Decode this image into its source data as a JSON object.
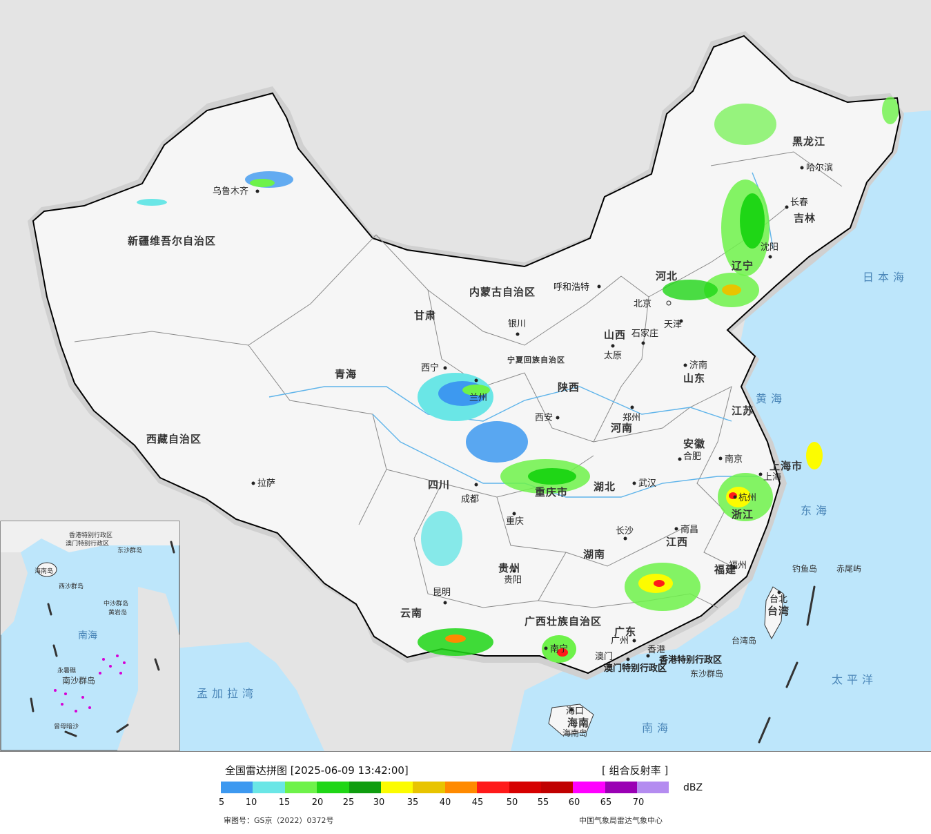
{
  "map": {
    "provinces": [
      "新疆维吾尔自治区",
      "西藏自治区",
      "青海",
      "甘肃",
      "内蒙古自治区",
      "黑龙江",
      "吉林",
      "辽宁",
      "河北",
      "山西",
      "陕西",
      "山东",
      "河南",
      "江苏",
      "安徽",
      "湖北",
      "四川",
      "重庆市",
      "贵州",
      "云南",
      "湖南",
      "江西",
      "浙江",
      "福建",
      "广东",
      "广西壮族自治区",
      "海南",
      "台湾",
      "宁夏回族自治区",
      "上海市",
      "北京",
      "天津",
      "香港特别行政区",
      "澳门特别行政区"
    ],
    "cities": [
      "乌鲁木齐",
      "拉萨",
      "西宁",
      "兰州",
      "银川",
      "呼和浩特",
      "北京",
      "天津",
      "石家庄",
      "太原",
      "济南",
      "郑州",
      "西安",
      "成都",
      "重庆",
      "武汉",
      "长沙",
      "南昌",
      "合肥",
      "南京",
      "上海",
      "杭州",
      "福州",
      "贵阳",
      "昆明",
      "南宁",
      "广州",
      "香港",
      "澳门",
      "海口",
      "哈尔滨",
      "长春",
      "沈阳",
      "台北"
    ],
    "seas": [
      "日本海",
      "黄海",
      "东海",
      "南海",
      "太平洋",
      "孟加拉湾"
    ],
    "islands": [
      "钓鱼岛",
      "赤尾屿",
      "台湾岛",
      "东沙群岛",
      "海南岛"
    ],
    "inset_labels": [
      "香港特别行政区",
      "澳门特别行政区",
      "东沙群岛",
      "海南岛",
      "西沙群岛",
      "中沙群岛",
      "黄岩岛",
      "南海",
      "南沙群岛",
      "永暑礁",
      "曾母暗沙"
    ]
  },
  "legend": {
    "title": "全国雷达拼图 [2025-06-09 13:42:00]",
    "product": "[ 组合反射率 ]",
    "unit": "dBZ",
    "colors": [
      "#3d99f0",
      "#6ae6e6",
      "#6ef24a",
      "#1fd616",
      "#0f9d0f",
      "#fcfc00",
      "#e8c400",
      "#ff8a00",
      "#ff1a1a",
      "#d60000",
      "#c00000",
      "#ff00ff",
      "#9a00b4",
      "#b48cf0"
    ],
    "ticks": [
      "5",
      "10",
      "15",
      "20",
      "25",
      "30",
      "35",
      "40",
      "45",
      "50",
      "55",
      "60",
      "65",
      "70"
    ],
    "review_no": "审图号：GS京（2022）0372号",
    "source": "中国气象局雷达气象中心"
  }
}
